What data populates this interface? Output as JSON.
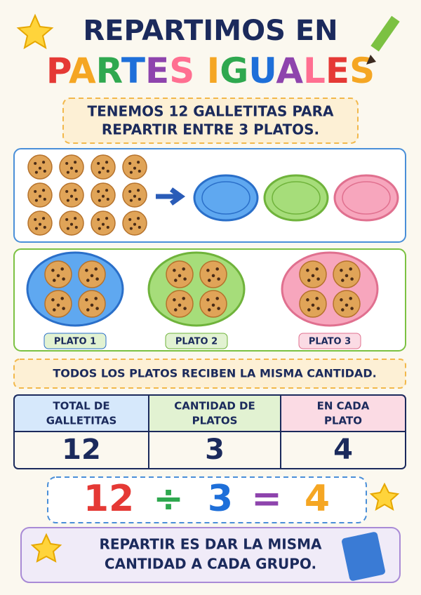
{
  "header": {
    "title_line1": "REPARTIMOS EN",
    "title_line2": "PARTES IGUALES"
  },
  "intro": [
    "TENEMOS 12 GALLETITAS PARA",
    "REPARTIR ENTRE 3 PLATOS."
  ],
  "plates": [
    "PLATO 1",
    "PLATO 2",
    "PLATO 3"
  ],
  "statement": "TODOS LOS PLATOS RECIBEN LA MISMA CANTIDAD.",
  "table": {
    "headers": [
      [
        "TOTAL DE",
        "GALLETITAS"
      ],
      [
        "CANTIDAD DE",
        "PLATOS"
      ],
      [
        "EN CADA",
        "PLATO"
      ]
    ],
    "values": [
      12,
      3,
      4
    ]
  },
  "equation": [
    "12",
    "÷",
    "3",
    "=",
    "4"
  ],
  "footer": [
    "REPARTIR ES DAR LA MISMA",
    "CANTIDAD A CADA GRUPO."
  ]
}
